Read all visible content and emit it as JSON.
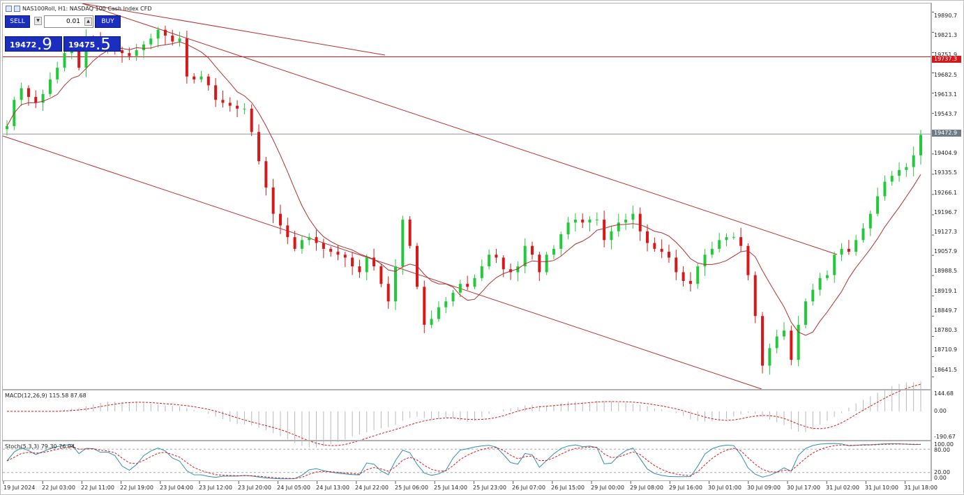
{
  "window": {
    "title": "NAS100Roll, H1: NASDAQ 100 Cash Index CFD"
  },
  "trade_panel": {
    "sell_label": "SELL",
    "buy_label": "BUY",
    "lot_value": "0.01",
    "sell_price_small": "19472",
    "sell_price_big": ".9",
    "buy_price_small": "19475",
    "buy_price_big": ".5",
    "up_arrow": "▲",
    "down_arrow": "▼"
  },
  "price_axis": {
    "labels": [
      "19890.7",
      "19821.3",
      "19751.9",
      "19682.5",
      "19613.1",
      "19543.7",
      "19404.9",
      "19335.5",
      "19266.1",
      "19196.7",
      "19127.3",
      "19057.9",
      "18988.5",
      "18919.1",
      "18849.7",
      "18780.3",
      "18710.9",
      "18641.5"
    ],
    "resistance_tag": "19737.3",
    "bid_tag": "19472.9"
  },
  "macd": {
    "label": "MACD(12,26,9) 115.58 87.68",
    "axis": [
      "144.68",
      "0.00",
      "-190.67"
    ]
  },
  "stoch": {
    "label": "Stoch(5,3,3) 79.30 76.94",
    "axis": [
      "100.00",
      "80.00",
      "20.00",
      "0.00"
    ]
  },
  "time_axis": [
    "19 Jul 2024",
    "22 Jul 03:00",
    "22 Jul 11:00",
    "22 Jul 19:00",
    "23 Jul 04:00",
    "23 Jul 12:00",
    "23 Jul 20:00",
    "24 Jul 05:00",
    "24 Jul 13:00",
    "24 Jul 22:00",
    "25 Jul 06:00",
    "25 Jul 14:00",
    "25 Jul 23:00",
    "26 Jul 07:00",
    "26 Jul 15:00",
    "29 Jul 00:00",
    "29 Jul 08:00",
    "29 Jul 16:00",
    "30 Jul 01:00",
    "30 Jul 09:00",
    "30 Jul 17:00",
    "31 Jul 02:00",
    "31 Jul 10:00",
    "31 Jul 18:00"
  ],
  "colors": {
    "bull": "#22c93a",
    "bear": "#d81818",
    "ma": "#b03030",
    "channel": "#b03030",
    "bid_line": "#8a96a0",
    "panel": "#1b2ec0"
  },
  "chart_data": {
    "type": "candlestick",
    "symbol": "NAS100Roll",
    "timeframe": "H1",
    "y_range": [
      18600,
      19920
    ],
    "close_path": [
      19500,
      19590,
      19630,
      19600,
      19580,
      19610,
      19660,
      19700,
      19750,
      19780,
      19700,
      19800,
      19790,
      19770,
      19780,
      19760,
      19750,
      19740,
      19760,
      19780,
      19800,
      19830,
      19810,
      19790,
      19800,
      19670,
      19660,
      19670,
      19640,
      19590,
      19580,
      19570,
      19560,
      19560,
      19480,
      19380,
      19290,
      19200,
      19160,
      19120,
      19080,
      19110,
      19120,
      19100,
      19080,
      19070,
      19060,
      19050,
      19020,
      19000,
      19050,
      19020,
      18960,
      18900,
      19020,
      19180,
      19090,
      18950,
      18820,
      18840,
      18880,
      18900,
      18930,
      18960,
      18950,
      18980,
      19020,
      19060,
      19050,
      19010,
      19000,
      19020,
      19090,
      19060,
      19000,
      19060,
      19080,
      19130,
      19170,
      19180,
      19170,
      19180,
      19180,
      19110,
      19140,
      19170,
      19180,
      19200,
      19140,
      19100,
      19080,
      19070,
      19050,
      19000,
      18970,
      18960,
      19020,
      19060,
      19080,
      19110,
      19120,
      19120,
      19090,
      18990,
      18850,
      18680,
      18740,
      18780,
      18800,
      18700,
      18820,
      18900,
      18940,
      18980,
      18990,
      19060,
      19080,
      19070,
      19110,
      19150,
      19200,
      19260,
      19310,
      19330,
      19350,
      19360,
      19400,
      19470
    ]
  }
}
